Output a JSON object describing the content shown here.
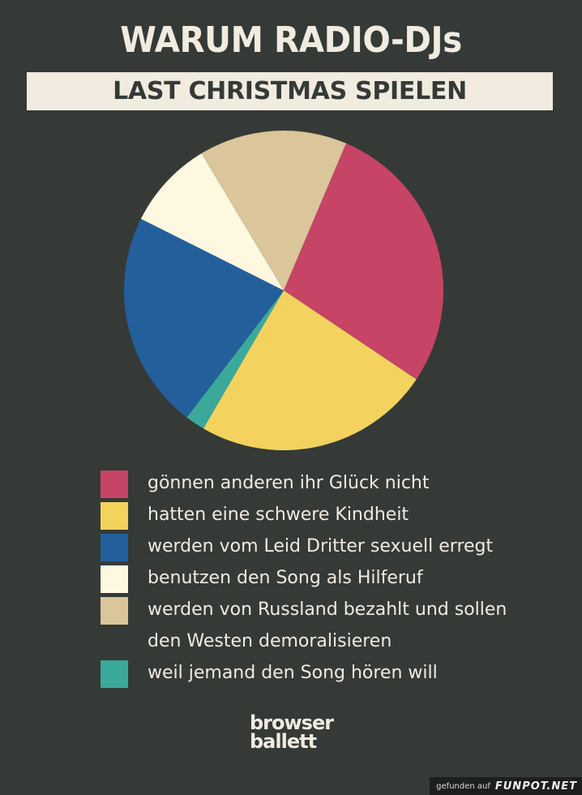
{
  "header": {
    "title": "WARUM RADIO-DJs",
    "subtitle": "LAST CHRISTMAS SPIELEN"
  },
  "chart_data": {
    "type": "pie",
    "title": "WARUM RADIO-DJs LAST CHRISTMAS SPIELEN",
    "start_angle_deg": 23,
    "slices": [
      {
        "label": "gönnen anderen ihr Glück nicht",
        "value": 28,
        "color": "#c64465"
      },
      {
        "label": "hatten eine schwere Kindheit",
        "value": 24,
        "color": "#f3d35d"
      },
      {
        "label": "weil jemand den Song hören will",
        "value": 2,
        "color": "#3aa99a"
      },
      {
        "label": "werden vom Leid Dritter sexuell erregt",
        "value": 22,
        "color": "#225f9b"
      },
      {
        "label": "benutzen den Song als Hilferuf",
        "value": 9,
        "color": "#fdf8df"
      },
      {
        "label": "werden von Russland bezahlt und sollen den Westen demoralisieren",
        "value": 15,
        "color": "#dbc59a"
      }
    ]
  },
  "legend": {
    "items": [
      {
        "line1": "gönnen anderen ihr Glück nicht",
        "line2": "",
        "color": "#c64465"
      },
      {
        "line1": "hatten eine schwere Kindheit",
        "line2": "",
        "color": "#f3d35d"
      },
      {
        "line1": "werden vom Leid Dritter sexuell erregt",
        "line2": "",
        "color": "#225f9b"
      },
      {
        "line1": "benutzen den Song als Hilferuf",
        "line2": "",
        "color": "#fdf8df"
      },
      {
        "line1": "werden von Russland bezahlt und sollen",
        "line2": "den Westen demoralisieren",
        "color": "#dbc59a"
      },
      {
        "line1": "weil jemand den Song hören will",
        "line2": "",
        "color": "#3aa99a"
      }
    ]
  },
  "logo": {
    "line1": "browser",
    "line2": "ballett"
  },
  "footer": {
    "prefix": "gefunden auf",
    "brand": "FUNPOT.NET"
  }
}
